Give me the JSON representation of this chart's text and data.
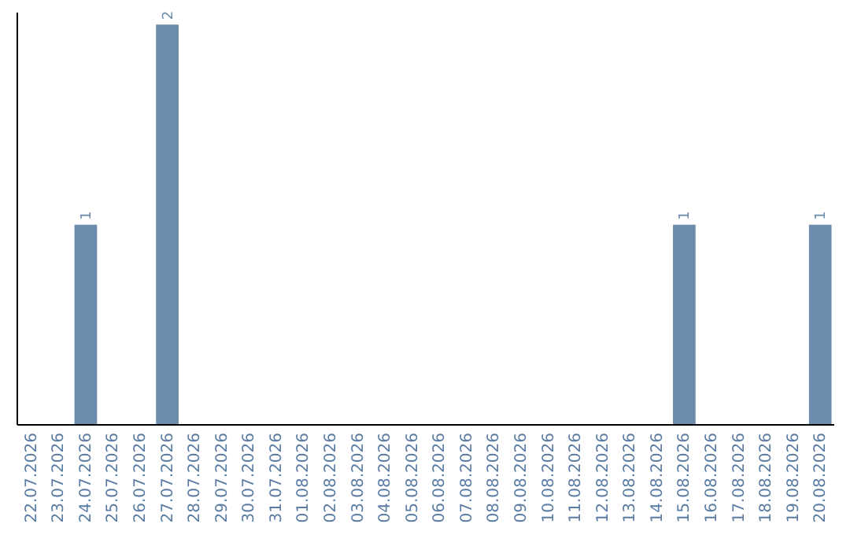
{
  "chart_data": {
    "type": "bar",
    "categories": [
      "22.07.2026",
      "23.07.2026",
      "24.07.2026",
      "25.07.2026",
      "26.07.2026",
      "27.07.2026",
      "28.07.2026",
      "29.07.2026",
      "30.07.2026",
      "31.07.2026",
      "01.08.2026",
      "02.08.2026",
      "03.08.2026",
      "04.08.2026",
      "05.08.2026",
      "06.08.2026",
      "07.08.2026",
      "08.08.2026",
      "09.08.2026",
      "10.08.2026",
      "11.08.2026",
      "12.08.2026",
      "13.08.2026",
      "14.08.2026",
      "15.08.2026",
      "16.08.2026",
      "17.08.2026",
      "18.08.2026",
      "19.08.2026",
      "20.08.2026"
    ],
    "values": [
      0,
      0,
      1,
      0,
      0,
      2,
      0,
      0,
      0,
      0,
      0,
      0,
      0,
      0,
      0,
      0,
      0,
      0,
      0,
      0,
      0,
      0,
      0,
      0,
      1,
      0,
      0,
      0,
      0,
      1
    ],
    "value_labels": [
      null,
      null,
      "1",
      null,
      null,
      "2",
      null,
      null,
      null,
      null,
      null,
      null,
      null,
      null,
      null,
      null,
      null,
      null,
      null,
      null,
      null,
      null,
      null,
      null,
      "1",
      null,
      null,
      null,
      null,
      "1"
    ],
    "color": "#6b8cab",
    "tick_labels": "x"
  }
}
